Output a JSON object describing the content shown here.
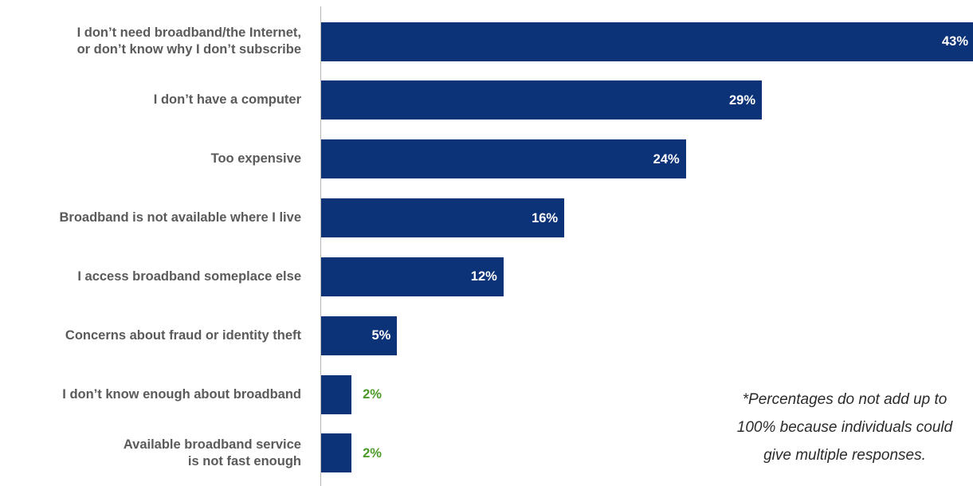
{
  "chart_data": {
    "type": "bar",
    "orientation": "horizontal",
    "categories": [
      "I don’t need broadband/the Internet,\nor don’t know why I don’t subscribe",
      "I don’t have a computer",
      "Too expensive",
      "Broadband is not available where I live",
      "I access broadband someplace else",
      "Concerns about fraud or identity theft",
      "I don’t know enough about broadband",
      "Available broadband service\nis not fast enough"
    ],
    "values": [
      43,
      29,
      24,
      16,
      12,
      5,
      2,
      2
    ],
    "value_labels": [
      "43%",
      "29%",
      "24%",
      "16%",
      "12%",
      "5%",
      "2%",
      "2%"
    ],
    "unit": "%",
    "title": "",
    "xlabel": "",
    "ylabel": "",
    "grid": false,
    "colors": {
      "bar": "#0c3278",
      "label_inside": "#ffffff",
      "label_outside": "#4c9a2a",
      "category_text": "#5a5a5a"
    }
  },
  "footnote": "*Percentages do not add up to\n100% because individuals could\ngive multiple responses."
}
